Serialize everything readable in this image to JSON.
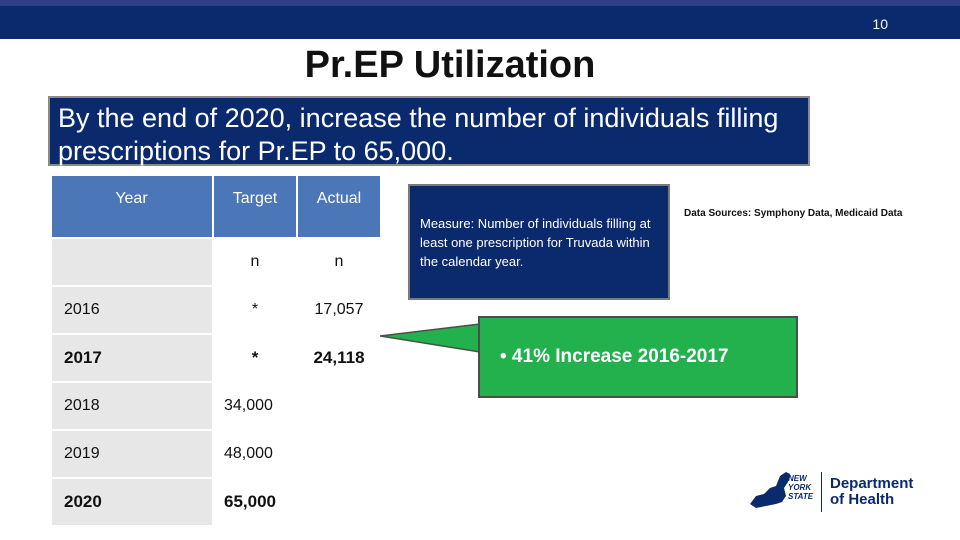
{
  "slide": {
    "page_number": "10",
    "title": "Pr.EP Utilization",
    "goal": "By the end of 2020, increase the number of individuals filling prescriptions for Pr.EP to 65,000."
  },
  "table": {
    "headers": {
      "year": "Year",
      "target": "Target",
      "actual": "Actual"
    },
    "subheaders": {
      "year": "",
      "target": "n",
      "actual": "n"
    },
    "rows": [
      {
        "year": "2016",
        "target": "*",
        "actual": "17,057"
      },
      {
        "year": "2017",
        "target": "*",
        "actual": "24,118"
      },
      {
        "year": "2018",
        "target": "34,000",
        "actual": ""
      },
      {
        "year": "2019",
        "target": "48,000",
        "actual": ""
      },
      {
        "year": "2020",
        "target": "65,000",
        "actual": ""
      }
    ]
  },
  "measure": "Measure: Number of individuals filling at least one prescription for Truvada within the calendar year.",
  "sources": "Data Sources: Symphony Data, Medicaid Data",
  "callout": "•  41% Increase 2016-2017",
  "logo": {
    "state_line1": "NEW",
    "state_line2": "YORK",
    "state_line3": "STATE",
    "dept_line1": "Department",
    "dept_line2": "of Health"
  },
  "colors": {
    "navy": "#0b2a6e",
    "table_header": "#4b76b8",
    "callout_green": "#22b14c",
    "cell_gray": "#e7e7e7"
  }
}
